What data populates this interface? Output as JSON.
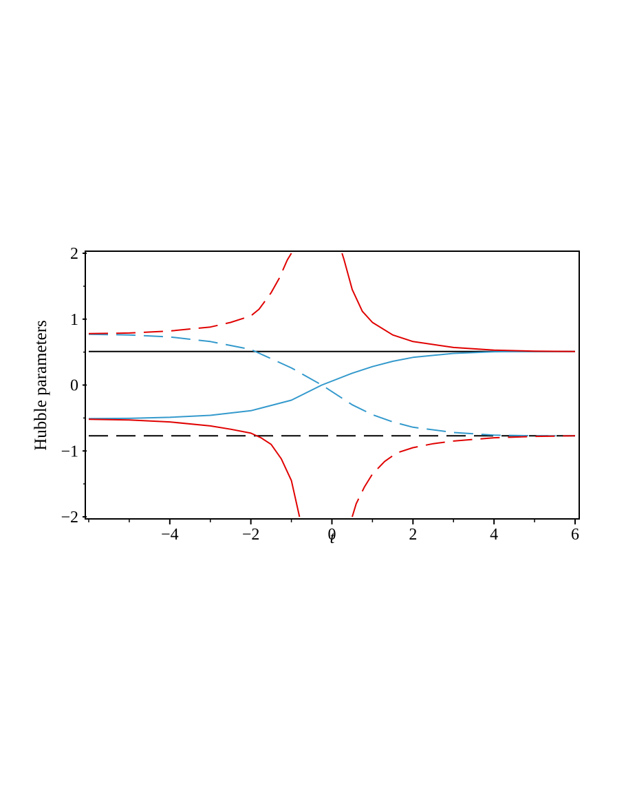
{
  "chart_data": {
    "type": "line",
    "title": "",
    "xlabel": "t",
    "ylabel": "Hubble parameters",
    "xlim": [
      -6,
      6
    ],
    "ylim": [
      -2,
      2
    ],
    "x_ticks": [
      -4,
      -2,
      0,
      2,
      4,
      6
    ],
    "x_tick_labels": [
      "−4",
      "−2",
      "0",
      "2",
      "4",
      "6"
    ],
    "y_ticks": [
      -2,
      -1,
      0,
      1,
      2
    ],
    "y_tick_labels": [
      "−2",
      "−1",
      "0",
      "1",
      "2"
    ],
    "grid": false,
    "legend": "none",
    "series": [
      {
        "color": "#000000",
        "dash": "solid",
        "x": [
          -6,
          6
        ],
        "y": [
          0.51,
          0.51
        ]
      },
      {
        "color": "#000000",
        "dash": "long-dash",
        "x": [
          -6,
          6
        ],
        "y": [
          -0.77,
          -0.77
        ]
      },
      {
        "color": "#3399cc",
        "dash": "solid",
        "x": [
          -6,
          -5,
          -4,
          -3,
          -2,
          -1,
          -0.25,
          0.5,
          1,
          1.5,
          2,
          3,
          4,
          5,
          6
        ],
        "y": [
          -0.51,
          -0.505,
          -0.49,
          -0.46,
          -0.39,
          -0.23,
          0.0,
          0.18,
          0.28,
          0.36,
          0.42,
          0.48,
          0.505,
          0.51,
          0.51
        ]
      },
      {
        "color": "#3399cc",
        "dash": "long-dash",
        "x": [
          -6,
          -5,
          -4,
          -3,
          -2,
          -1,
          -0.25,
          0.5,
          1,
          1.5,
          2,
          3,
          4,
          5,
          6
        ],
        "y": [
          0.77,
          0.76,
          0.73,
          0.66,
          0.54,
          0.26,
          0.0,
          -0.3,
          -0.45,
          -0.56,
          -0.64,
          -0.72,
          -0.76,
          -0.77,
          -0.77
        ]
      },
      {
        "color": "#e00000",
        "dash": "long-dash",
        "x": [
          -6,
          -5,
          -4,
          -3,
          -2.5,
          -2,
          -1.8,
          -1.5,
          -1.3,
          -1.1,
          -1.0
        ],
        "y": [
          0.78,
          0.79,
          0.82,
          0.88,
          0.95,
          1.05,
          1.15,
          1.4,
          1.62,
          1.9,
          2.0
        ]
      },
      {
        "color": "#e00000",
        "dash": "solid",
        "x": [
          0.25,
          0.3,
          0.5,
          0.75,
          1,
          1.5,
          2,
          3,
          4,
          5,
          6
        ],
        "y": [
          2.0,
          1.9,
          1.45,
          1.12,
          0.95,
          0.76,
          0.66,
          0.57,
          0.53,
          0.515,
          0.51
        ]
      },
      {
        "color": "#e00000",
        "dash": "solid",
        "x": [
          -6,
          -5,
          -4,
          -3,
          -2.5,
          -2,
          -1.75,
          -1.5,
          -1.25,
          -1.0,
          -0.8
        ],
        "y": [
          -0.52,
          -0.53,
          -0.56,
          -0.62,
          -0.67,
          -0.73,
          -0.8,
          -0.9,
          -1.12,
          -1.45,
          -2.0
        ]
      },
      {
        "color": "#e00000",
        "dash": "long-dash",
        "x": [
          0.5,
          0.6,
          0.8,
          1.0,
          1.3,
          1.6,
          2,
          2.5,
          3,
          4,
          5,
          6
        ],
        "y": [
          -2.0,
          -1.8,
          -1.55,
          -1.35,
          -1.16,
          -1.03,
          -0.95,
          -0.89,
          -0.85,
          -0.8,
          -0.78,
          -0.77
        ]
      }
    ]
  }
}
